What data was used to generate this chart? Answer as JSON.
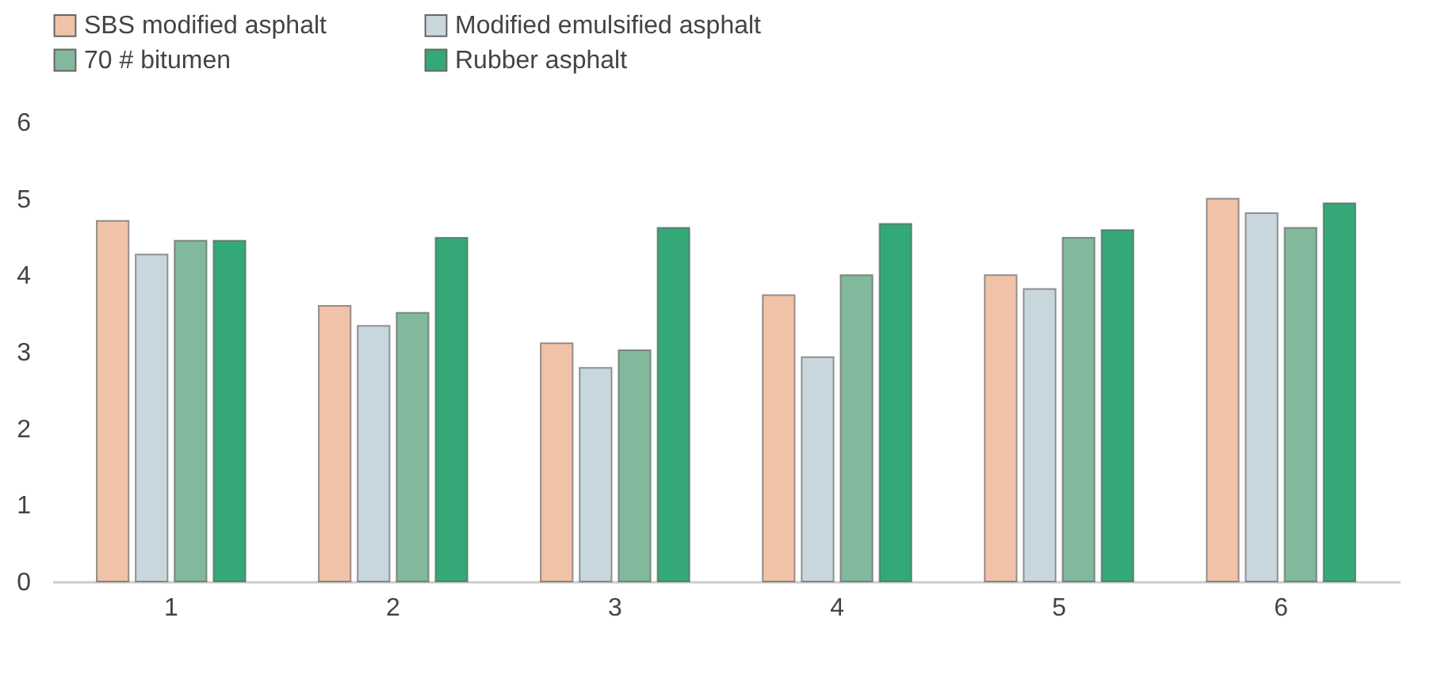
{
  "chart_data": {
    "type": "bar",
    "categories": [
      "1",
      "2",
      "3",
      "4",
      "5",
      "6"
    ],
    "series": [
      {
        "name": "SBS modified asphalt",
        "color": "#f0c3a8",
        "values": [
          4.71,
          3.6,
          3.11,
          3.74,
          4.0,
          5.0
        ]
      },
      {
        "name": "Modified emulsified asphalt",
        "color": "#c8d7dd",
        "values": [
          4.27,
          3.34,
          2.79,
          2.93,
          3.82,
          4.81
        ]
      },
      {
        "name": "70 # bitumen",
        "color": "#82b89c",
        "values": [
          4.45,
          3.51,
          3.02,
          4.0,
          4.49,
          4.62
        ]
      },
      {
        "name": "Rubber asphalt",
        "color": "#35a877",
        "values": [
          4.45,
          4.49,
          4.62,
          4.67,
          4.59,
          4.94
        ]
      }
    ],
    "ylim": [
      0,
      6
    ],
    "yticks": [
      0,
      1,
      2,
      3,
      4,
      5,
      6
    ],
    "grid": false,
    "legend": "top"
  }
}
